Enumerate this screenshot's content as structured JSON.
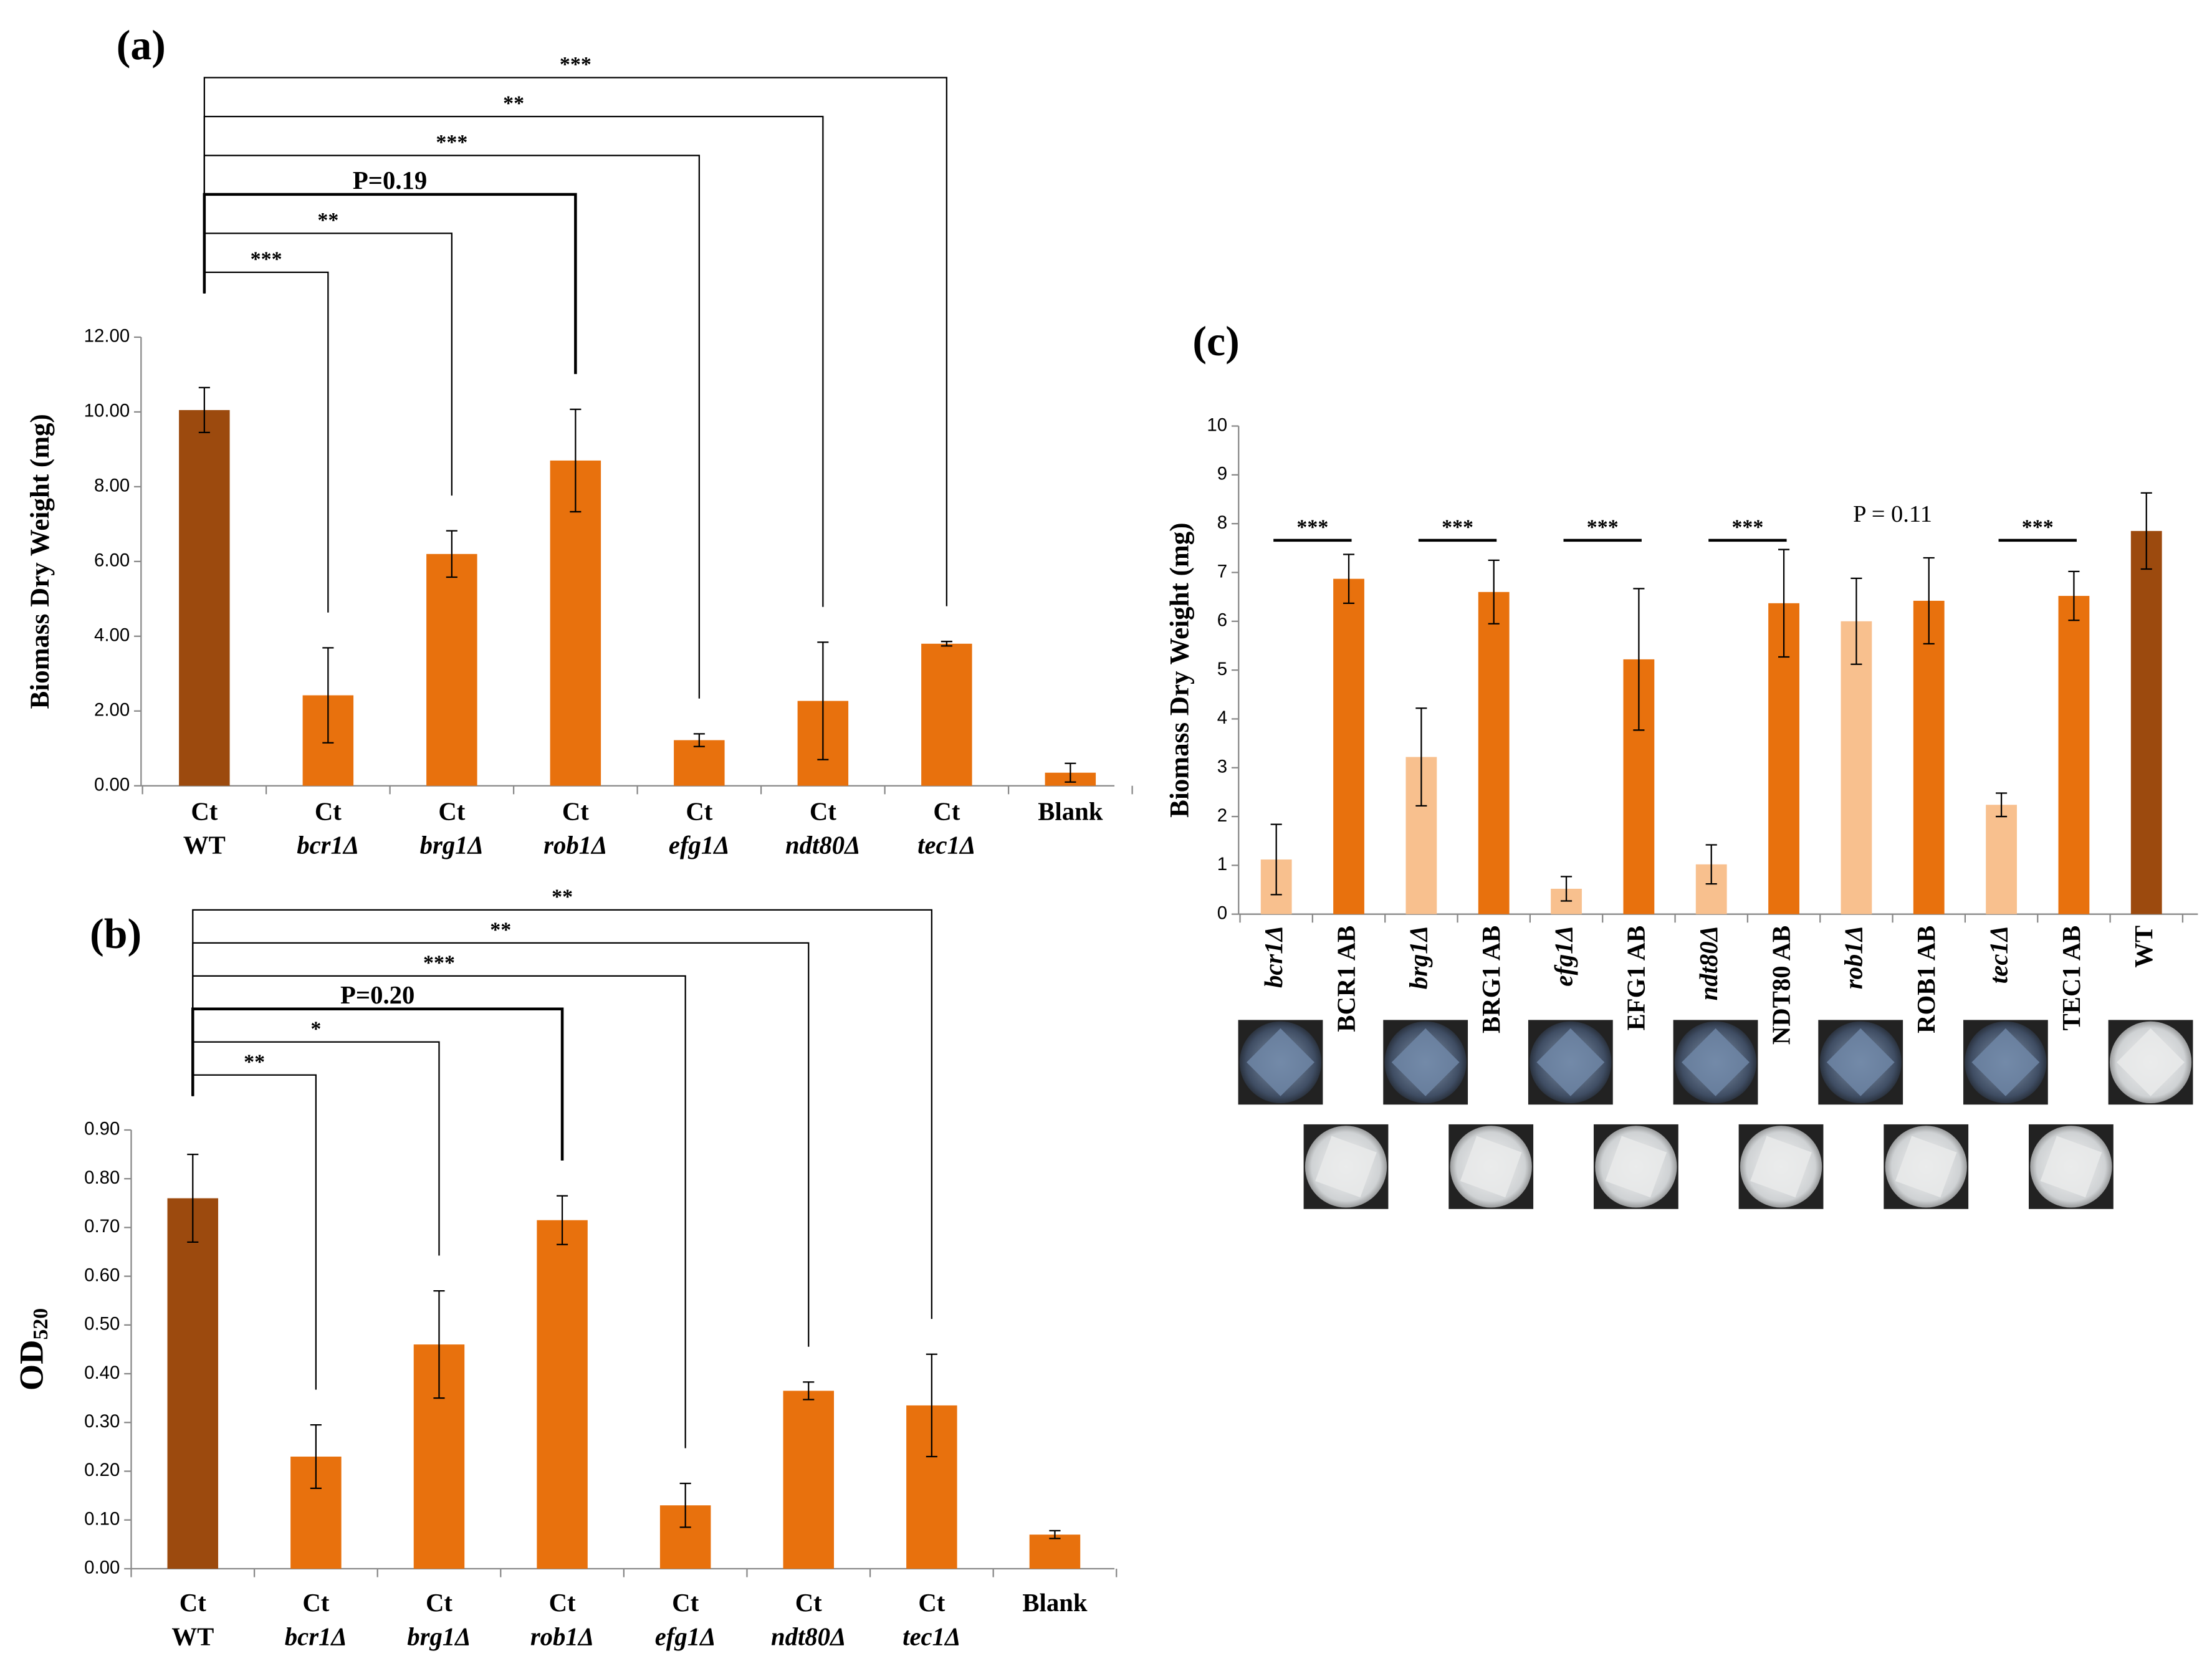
{
  "chart_data": [
    {
      "type": "bar",
      "title": "(a)",
      "ylabel": "Biomass Dry Weight (mg)",
      "categories": [
        [
          "Ct",
          "WT"
        ],
        [
          "Ct",
          "bcr1Δ"
        ],
        [
          "Ct",
          "brg1Δ"
        ],
        [
          "Ct",
          "rob1Δ"
        ],
        [
          "Ct",
          "efg1Δ"
        ],
        [
          "Ct",
          "ndt80Δ"
        ],
        [
          "Ct",
          "tec1Δ"
        ],
        [
          "Blank"
        ]
      ],
      "values": [
        10.05,
        2.42,
        6.2,
        8.7,
        1.22,
        2.27,
        3.8,
        0.35
      ],
      "errors": [
        0.6,
        1.27,
        0.62,
        1.37,
        0.17,
        1.57,
        0.06,
        0.25
      ],
      "colors": [
        "#9c4a0e",
        "#e8710d",
        "#e8710d",
        "#e8710d",
        "#e8710d",
        "#e8710d",
        "#e8710d",
        "#e8710d"
      ],
      "significance": [
        null,
        "***",
        "**",
        "P=0.19",
        "***",
        "**",
        "***",
        null
      ],
      "ylim": [
        0,
        12
      ],
      "yticks": [
        {
          "value": 0,
          "label": "0.00"
        },
        {
          "value": 2,
          "label": "2.00"
        },
        {
          "value": 4,
          "label": "4.00"
        },
        {
          "value": 6,
          "label": "6.00"
        },
        {
          "value": 8,
          "label": "8.00"
        },
        {
          "value": 10,
          "label": "10.00"
        },
        {
          "value": 12,
          "label": "12.00"
        }
      ]
    },
    {
      "type": "bar",
      "title": "(b)",
      "ylabel": "OD",
      "ylabel_sub": "520",
      "categories": [
        [
          "Ct",
          "WT"
        ],
        [
          "Ct",
          "bcr1Δ"
        ],
        [
          "Ct",
          "brg1Δ"
        ],
        [
          "Ct",
          "rob1Δ"
        ],
        [
          "Ct",
          "efg1Δ"
        ],
        [
          "Ct",
          "ndt80Δ"
        ],
        [
          "Ct",
          "tec1Δ"
        ],
        [
          "Blank"
        ]
      ],
      "values": [
        0.76,
        0.23,
        0.46,
        0.715,
        0.13,
        0.365,
        0.335,
        0.07
      ],
      "errors": [
        0.09,
        0.065,
        0.11,
        0.05,
        0.045,
        0.018,
        0.105,
        0.008
      ],
      "colors": [
        "#9c4a0e",
        "#e8710d",
        "#e8710d",
        "#e8710d",
        "#e8710d",
        "#e8710d",
        "#e8710d",
        "#e8710d"
      ],
      "significance": [
        null,
        "**",
        "*",
        "P=0.20",
        "***",
        "**",
        "**",
        null
      ],
      "ylim": [
        0,
        0.9
      ],
      "yticks": [
        {
          "value": 0,
          "label": "0.00"
        },
        {
          "value": 0.1,
          "label": "0.10"
        },
        {
          "value": 0.2,
          "label": "0.20"
        },
        {
          "value": 0.3,
          "label": "0.30"
        },
        {
          "value": 0.4,
          "label": "0.40"
        },
        {
          "value": 0.5,
          "label": "0.50"
        },
        {
          "value": 0.6,
          "label": "0.60"
        },
        {
          "value": 0.7,
          "label": "0.70"
        },
        {
          "value": 0.8,
          "label": "0.80"
        },
        {
          "value": 0.9,
          "label": "0.90"
        }
      ]
    },
    {
      "type": "paired_bar",
      "title": "(c)",
      "ylabel": "Biomass Dry Weight (mg)",
      "categories": [
        "bcr1Δ",
        "BCR1 AB",
        "brg1Δ",
        "BRG1 AB",
        "efg1Δ",
        "EFG1 AB",
        "ndt80Δ",
        "NDT80 AB",
        "rob1Δ",
        "ROB1 AB",
        "tec1Δ",
        "TEC1 AB",
        "WT"
      ],
      "values": [
        1.12,
        6.87,
        3.22,
        6.6,
        0.52,
        5.22,
        1.02,
        6.37,
        6.0,
        6.42,
        2.24,
        6.52,
        7.85
      ],
      "errors": [
        0.72,
        0.5,
        1.0,
        0.65,
        0.25,
        1.45,
        0.4,
        1.1,
        0.88,
        0.88,
        0.24,
        0.5,
        0.78
      ],
      "colors": [
        "#f8c08e",
        "#e8710d",
        "#f8c08e",
        "#e8710d",
        "#f8c08e",
        "#e8710d",
        "#f8c08e",
        "#e8710d",
        "#f8c08e",
        "#e8710d",
        "#f8c08e",
        "#e8710d",
        "#9c4a0e"
      ],
      "pair_significance": [
        "***",
        "***",
        "***",
        "***",
        "P = 0.11",
        "***"
      ],
      "pair_lines": [
        true,
        true,
        true,
        true,
        false,
        true
      ],
      "ylim": [
        0,
        10
      ],
      "yticks": [
        0,
        1,
        2,
        3,
        4,
        5,
        6,
        7,
        8,
        9,
        10
      ]
    }
  ]
}
